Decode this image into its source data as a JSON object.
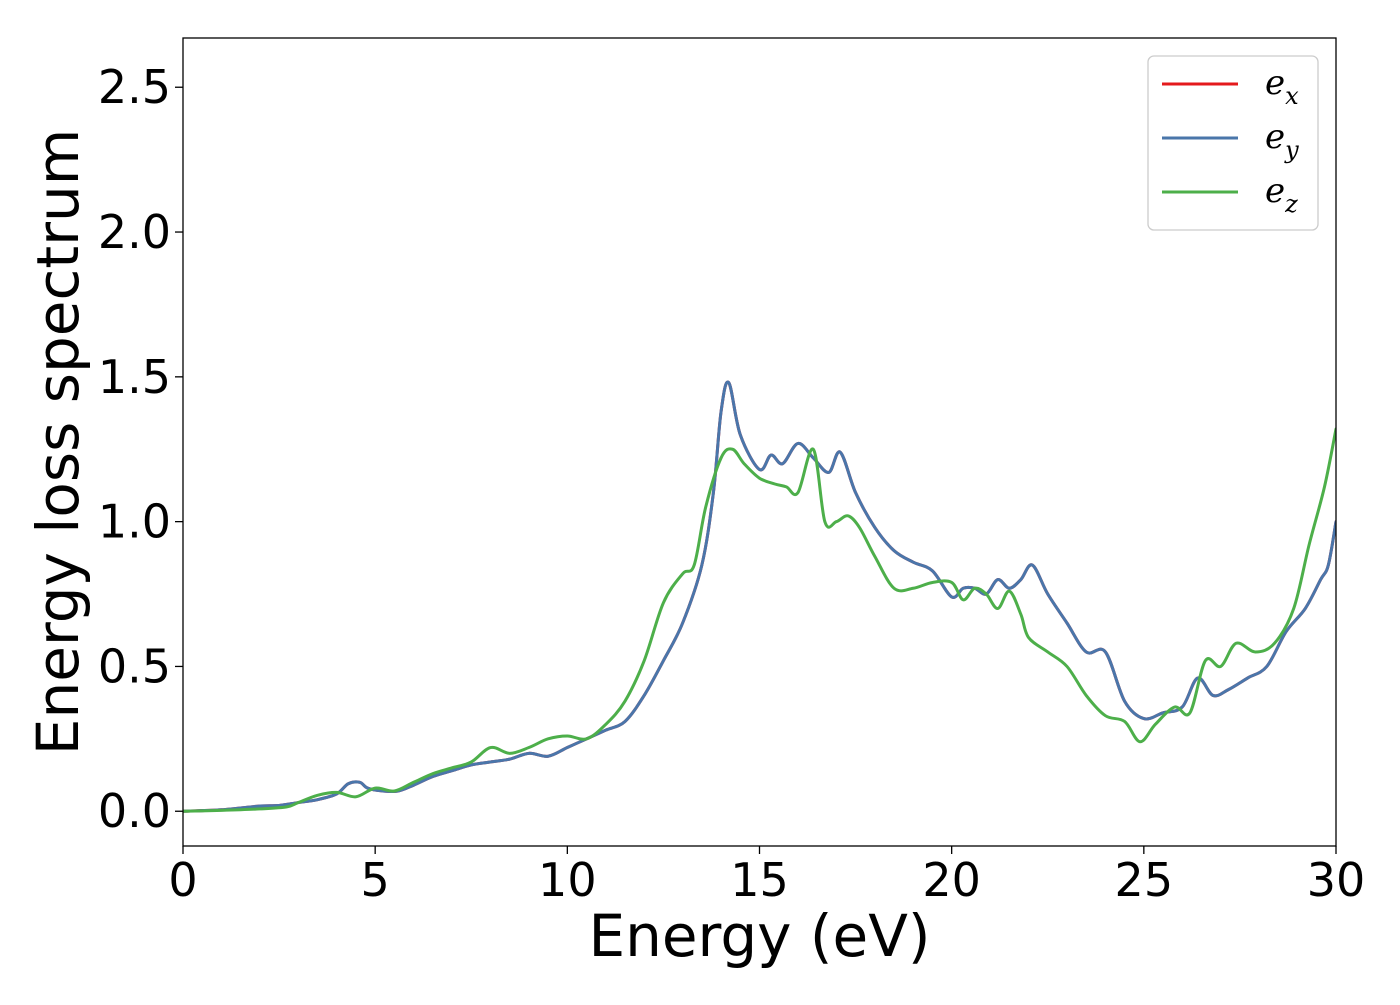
{
  "chart_data": {
    "type": "line",
    "title": "",
    "xlabel": "Energy (eV)",
    "ylabel": "Energy loss spectrum",
    "xlim": [
      0,
      30
    ],
    "ylim": [
      -0.12,
      2.67
    ],
    "x_ticks": [
      0,
      5,
      10,
      15,
      20,
      25,
      30
    ],
    "x_tick_labels": [
      "0",
      "5",
      "10",
      "15",
      "20",
      "25",
      "30"
    ],
    "y_ticks": [
      0.0,
      0.5,
      1.0,
      1.5,
      2.0,
      2.5
    ],
    "y_tick_labels": [
      "0.0",
      "0.5",
      "1.0",
      "1.5",
      "2.0",
      "2.5"
    ],
    "grid": false,
    "legend_position": "top-right",
    "series": [
      {
        "name": "e_x",
        "legend_base": "e",
        "legend_sub": "x",
        "color": "#e41a1c",
        "x": [
          0,
          1,
          2,
          2.5,
          3,
          3.5,
          4,
          4.3,
          4.6,
          4.8,
          5.2,
          5.6,
          6,
          6.5,
          7,
          7.5,
          8,
          8.5,
          9,
          9.5,
          10,
          10.5,
          11,
          11.5,
          12,
          12.5,
          13,
          13.5,
          13.8,
          14,
          14.2,
          14.5,
          15,
          15.3,
          15.6,
          16,
          16.4,
          16.8,
          17.1,
          17.5,
          18,
          18.5,
          19,
          19.5,
          20,
          20.3,
          20.6,
          20.9,
          21.2,
          21.5,
          21.8,
          22.1,
          22.5,
          23,
          23.5,
          24,
          24.5,
          25,
          25.5,
          26,
          26.4,
          26.8,
          27.2,
          27.7,
          28.2,
          28.7,
          29.2,
          29.6,
          29.8,
          30
        ],
        "y": [
          0,
          0.005,
          0.018,
          0.02,
          0.03,
          0.04,
          0.06,
          0.095,
          0.1,
          0.08,
          0.07,
          0.07,
          0.09,
          0.12,
          0.14,
          0.16,
          0.17,
          0.18,
          0.2,
          0.19,
          0.22,
          0.25,
          0.28,
          0.31,
          0.4,
          0.52,
          0.65,
          0.85,
          1.1,
          1.38,
          1.48,
          1.3,
          1.18,
          1.23,
          1.2,
          1.27,
          1.22,
          1.17,
          1.24,
          1.1,
          0.98,
          0.9,
          0.86,
          0.83,
          0.74,
          0.77,
          0.77,
          0.75,
          0.8,
          0.77,
          0.8,
          0.85,
          0.75,
          0.65,
          0.55,
          0.55,
          0.38,
          0.32,
          0.34,
          0.36,
          0.46,
          0.4,
          0.42,
          0.46,
          0.5,
          0.62,
          0.7,
          0.8,
          0.85,
          1.0
        ]
      },
      {
        "name": "e_y",
        "legend_base": "e",
        "legend_sub": "y",
        "color": "#4a76aa",
        "x": [
          0,
          1,
          2,
          2.5,
          3,
          3.5,
          4,
          4.3,
          4.6,
          4.8,
          5.2,
          5.6,
          6,
          6.5,
          7,
          7.5,
          8,
          8.5,
          9,
          9.5,
          10,
          10.5,
          11,
          11.5,
          12,
          12.5,
          13,
          13.5,
          13.8,
          14,
          14.2,
          14.5,
          15,
          15.3,
          15.6,
          16,
          16.4,
          16.8,
          17.1,
          17.5,
          18,
          18.5,
          19,
          19.5,
          20,
          20.3,
          20.6,
          20.9,
          21.2,
          21.5,
          21.8,
          22.1,
          22.5,
          23,
          23.5,
          24,
          24.5,
          25,
          25.5,
          26,
          26.4,
          26.8,
          27.2,
          27.7,
          28.2,
          28.7,
          29.2,
          29.6,
          29.8,
          30
        ],
        "y": [
          0,
          0.005,
          0.018,
          0.02,
          0.03,
          0.04,
          0.06,
          0.095,
          0.1,
          0.08,
          0.07,
          0.07,
          0.09,
          0.12,
          0.14,
          0.16,
          0.17,
          0.18,
          0.2,
          0.19,
          0.22,
          0.25,
          0.28,
          0.31,
          0.4,
          0.52,
          0.65,
          0.85,
          1.1,
          1.38,
          1.48,
          1.3,
          1.18,
          1.23,
          1.2,
          1.27,
          1.22,
          1.17,
          1.24,
          1.1,
          0.98,
          0.9,
          0.86,
          0.83,
          0.74,
          0.77,
          0.77,
          0.75,
          0.8,
          0.77,
          0.8,
          0.85,
          0.75,
          0.65,
          0.55,
          0.55,
          0.38,
          0.32,
          0.34,
          0.36,
          0.46,
          0.4,
          0.42,
          0.46,
          0.5,
          0.62,
          0.7,
          0.8,
          0.85,
          1.0
        ]
      },
      {
        "name": "e_z",
        "legend_base": "e",
        "legend_sub": "z",
        "color": "#4daf4a",
        "x": [
          0,
          1,
          2,
          2.7,
          3,
          3.5,
          4,
          4.5,
          5,
          5.5,
          6,
          6.5,
          7,
          7.5,
          8,
          8.5,
          9,
          9.5,
          10,
          10.5,
          11,
          11.5,
          12,
          12.5,
          13,
          13.3,
          13.6,
          14,
          14.3,
          14.6,
          15,
          15.4,
          15.7,
          16,
          16.4,
          16.7,
          17,
          17.3,
          17.6,
          18,
          18.5,
          19,
          19.5,
          20,
          20.3,
          20.6,
          20.9,
          21.2,
          21.5,
          21.8,
          22,
          22.5,
          23,
          23.5,
          24,
          24.5,
          24.9,
          25.3,
          25.8,
          26.2,
          26.6,
          27,
          27.4,
          27.9,
          28.4,
          28.9,
          29.3,
          29.7,
          30
        ],
        "y": [
          0,
          0.003,
          0.008,
          0.015,
          0.03,
          0.055,
          0.065,
          0.05,
          0.08,
          0.07,
          0.1,
          0.13,
          0.15,
          0.17,
          0.22,
          0.2,
          0.22,
          0.25,
          0.26,
          0.25,
          0.3,
          0.38,
          0.52,
          0.72,
          0.82,
          0.85,
          1.05,
          1.22,
          1.25,
          1.2,
          1.15,
          1.13,
          1.12,
          1.1,
          1.25,
          1.0,
          1.0,
          1.02,
          0.98,
          0.88,
          0.77,
          0.77,
          0.79,
          0.79,
          0.73,
          0.77,
          0.75,
          0.7,
          0.76,
          0.68,
          0.6,
          0.55,
          0.5,
          0.4,
          0.33,
          0.31,
          0.24,
          0.3,
          0.36,
          0.34,
          0.52,
          0.5,
          0.58,
          0.55,
          0.58,
          0.7,
          0.92,
          1.12,
          1.32
        ]
      }
    ]
  }
}
